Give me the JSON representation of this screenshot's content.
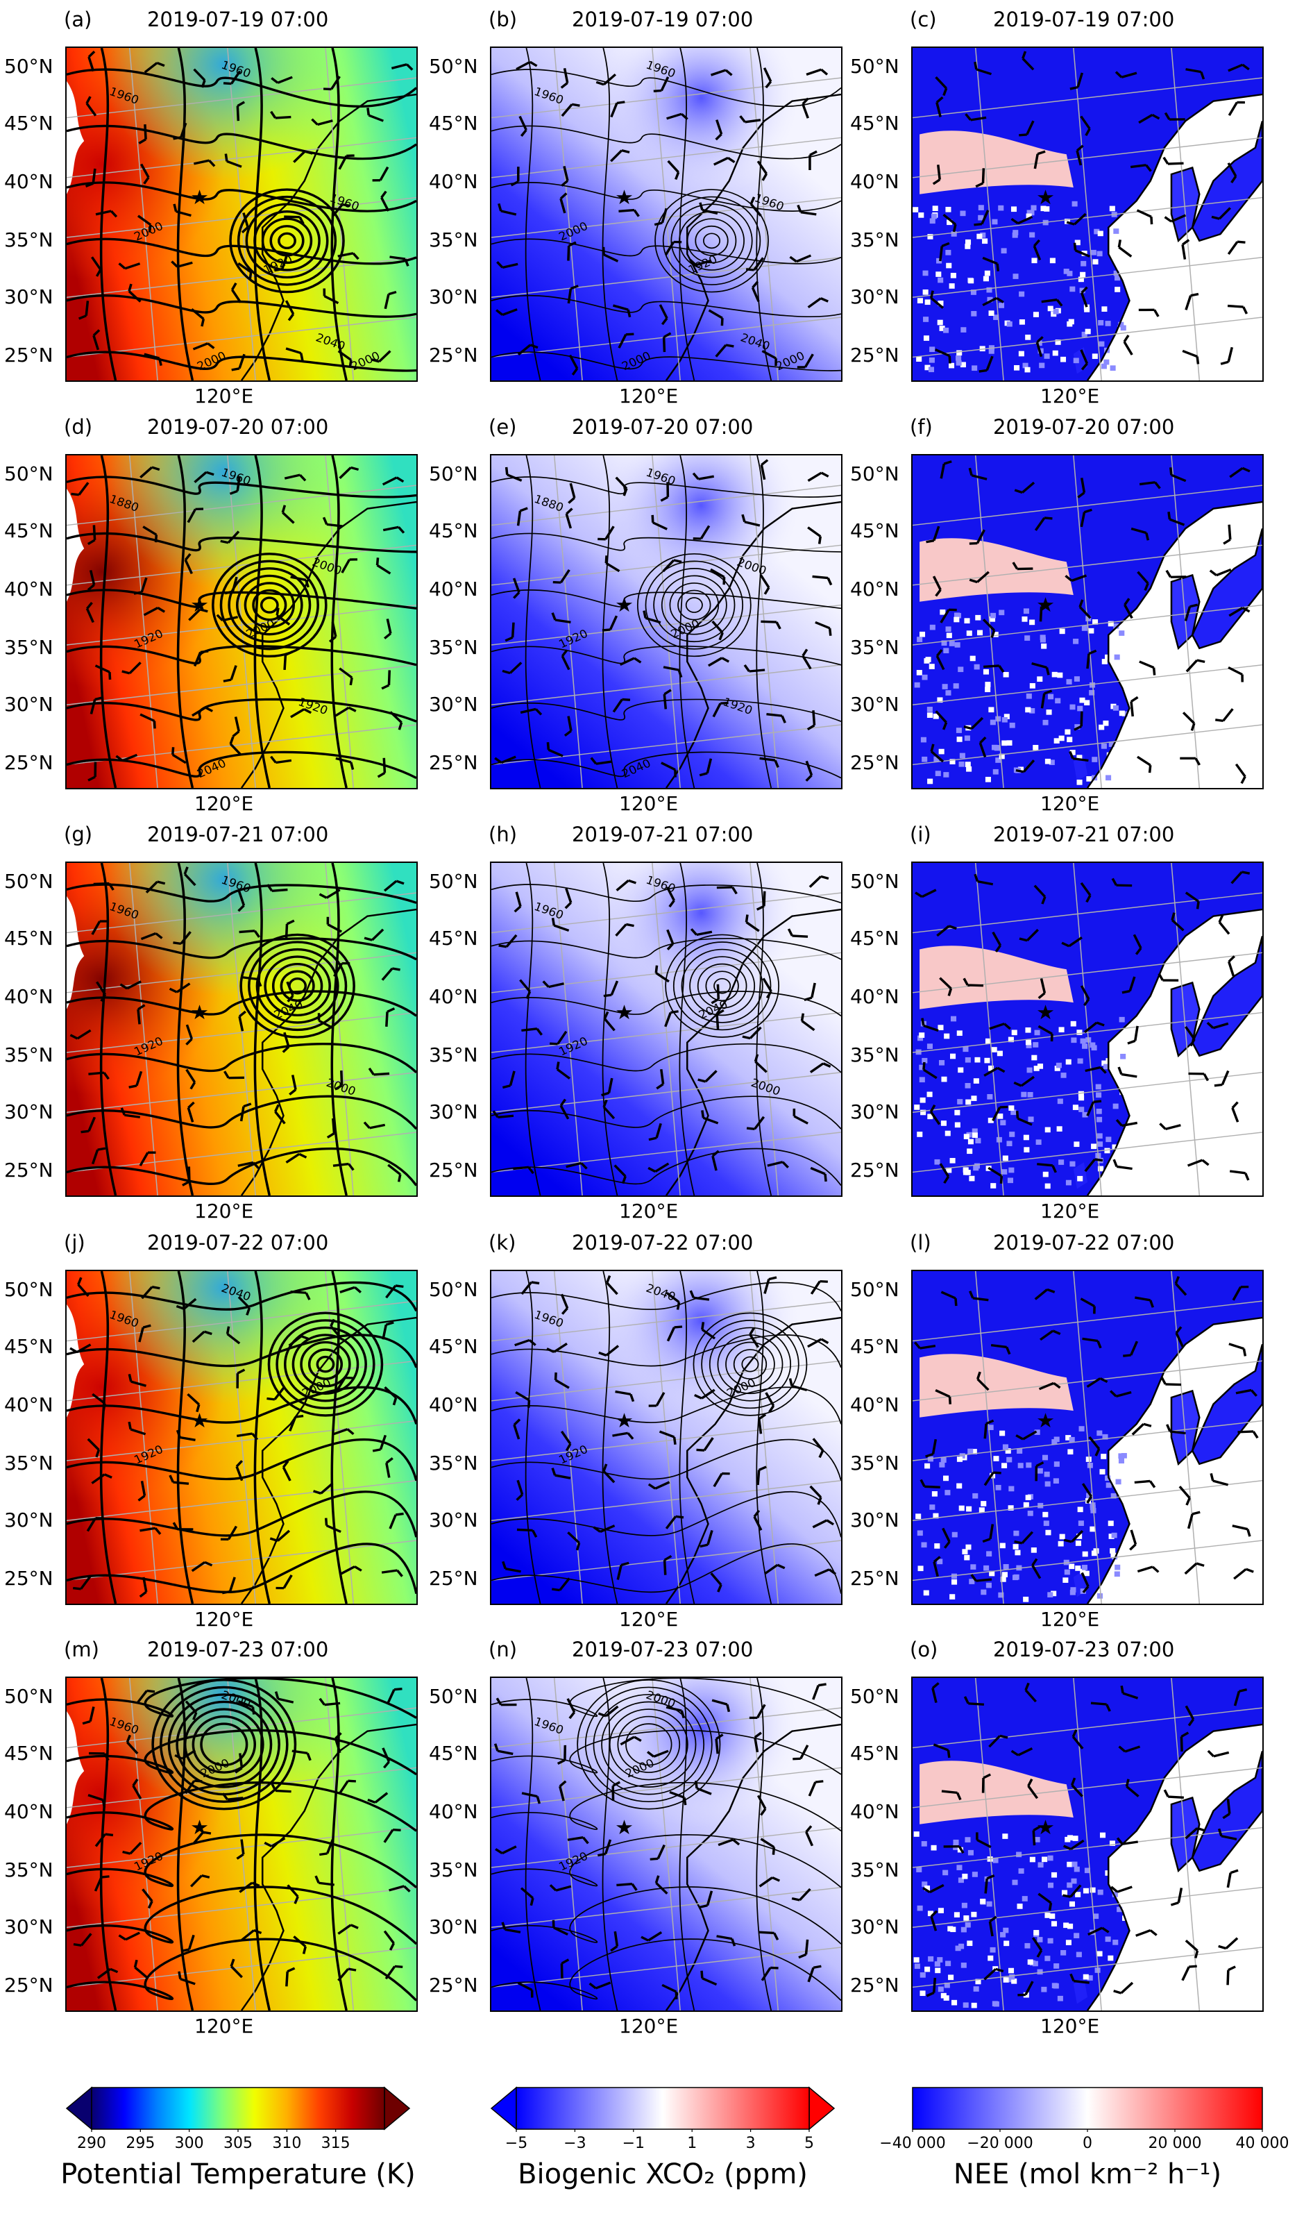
{
  "panels": [
    {
      "label": "(a)",
      "time": "2019-07-19 07:00",
      "field": "theta",
      "day": 0
    },
    {
      "label": "(b)",
      "time": "2019-07-19 07:00",
      "field": "xco2",
      "day": 0
    },
    {
      "label": "(c)",
      "time": "2019-07-19 07:00",
      "field": "nee",
      "day": 0
    },
    {
      "label": "(d)",
      "time": "2019-07-20 07:00",
      "field": "theta",
      "day": 1
    },
    {
      "label": "(e)",
      "time": "2019-07-20 07:00",
      "field": "xco2",
      "day": 1
    },
    {
      "label": "(f)",
      "time": "2019-07-20 07:00",
      "field": "nee",
      "day": 1
    },
    {
      "label": "(g)",
      "time": "2019-07-21 07:00",
      "field": "theta",
      "day": 2
    },
    {
      "label": "(h)",
      "time": "2019-07-21 07:00",
      "field": "xco2",
      "day": 2
    },
    {
      "label": "(i)",
      "time": "2019-07-21 07:00",
      "field": "nee",
      "day": 2
    },
    {
      "label": "(j)",
      "time": "2019-07-22 07:00",
      "field": "theta",
      "day": 3
    },
    {
      "label": "(k)",
      "time": "2019-07-22 07:00",
      "field": "xco2",
      "day": 3
    },
    {
      "label": "(l)",
      "time": "2019-07-22 07:00",
      "field": "nee",
      "day": 3
    },
    {
      "label": "(m)",
      "time": "2019-07-23 07:00",
      "field": "theta",
      "day": 4
    },
    {
      "label": "(n)",
      "time": "2019-07-23 07:00",
      "field": "xco2",
      "day": 4
    },
    {
      "label": "(o)",
      "time": "2019-07-23 07:00",
      "field": "nee",
      "day": 4
    }
  ],
  "lat_labels": [
    "50°N",
    "45°N",
    "40°N",
    "35°N",
    "30°N",
    "25°N"
  ],
  "lon_label": "120°E",
  "contour_labels": {
    "0": [
      "1960",
      "2000",
      "1960",
      "1920",
      "2040",
      "2000",
      "1960",
      "2000"
    ],
    "1": [
      "1880",
      "1920",
      "1960",
      "2000",
      "1920",
      "2040",
      "2000"
    ],
    "2": [
      "1960",
      "1920",
      "1960",
      "2040",
      "2000"
    ],
    "3": [
      "1960",
      "1920",
      "2040",
      "2000"
    ],
    "4": [
      "1960",
      "1920",
      "2000",
      "2000"
    ]
  },
  "colorbars": [
    {
      "key": "theta",
      "title": "Potential Temperature (K)",
      "ticks": [
        "290",
        "295",
        "300",
        "305",
        "310",
        "315"
      ],
      "tick_values": [
        290,
        295,
        300,
        305,
        310,
        315
      ],
      "range": [
        290,
        320
      ],
      "extend": "both",
      "colors": [
        "#08006f",
        "#0000ff",
        "#0080ff",
        "#00e5ff",
        "#7dff7a",
        "#f0ff00",
        "#ffb000",
        "#ff4000",
        "#c80000",
        "#6e0000"
      ]
    },
    {
      "key": "xco2",
      "title": "Biogenic XCO₂ (ppm)",
      "ticks": [
        "−5",
        "−3",
        "−1",
        "1",
        "3",
        "5"
      ],
      "tick_values": [
        -5,
        -3,
        -1,
        1,
        3,
        5
      ],
      "range": [
        -5,
        5
      ],
      "extend": "both",
      "colors": [
        "#0000ff",
        "#8080ff",
        "#ffffff",
        "#ff8080",
        "#ff0000"
      ]
    },
    {
      "key": "nee",
      "title": "NEE (mol km⁻² h⁻¹)",
      "ticks": [
        "−40 000",
        "−20 000",
        "0",
        "20 000",
        "40 000"
      ],
      "tick_values": [
        -40000,
        -20000,
        0,
        20000,
        40000
      ],
      "range": [
        -40000,
        40000
      ],
      "extend": "neither",
      "colors": [
        "#0000ff",
        "#8080ff",
        "#ffffff",
        "#ff8080",
        "#ff0000"
      ]
    }
  ],
  "colors": {
    "theta_ocean": "#c8e600",
    "xco2_blue": "#1a1aff",
    "nee_blue": "#1414ee",
    "nee_pink": "#f8c8c8",
    "grid": "#b0b0b0",
    "contour": "#000000"
  }
}
